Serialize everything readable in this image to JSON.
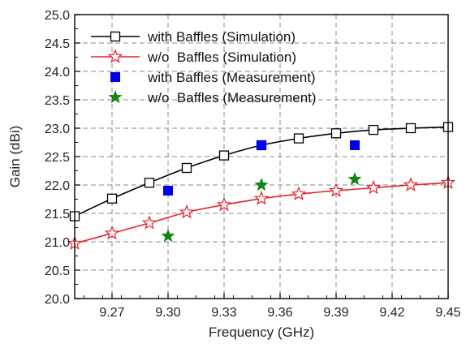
{
  "chart_data": {
    "type": "line",
    "title": "",
    "xlabel": "Frequency (GHz)",
    "ylabel": "Gain (dBi)",
    "xlim": [
      9.25,
      9.45
    ],
    "ylim": [
      20.0,
      25.0
    ],
    "x_ticks": [
      "9.27",
      "9.30",
      "9.33",
      "9.36",
      "9.39",
      "9.42",
      "9.45"
    ],
    "y_ticks": [
      "20.0",
      "20.5",
      "21.0",
      "21.5",
      "22.0",
      "22.5",
      "23.0",
      "23.5",
      "24.0",
      "24.5",
      "25.0"
    ],
    "grid": true,
    "legend_position": "top-left",
    "series": [
      {
        "name": "with Baffles (Simulation)",
        "style": "line+open-square",
        "color": "#000000",
        "x": [
          9.25,
          9.27,
          9.29,
          9.31,
          9.33,
          9.35,
          9.37,
          9.39,
          9.41,
          9.43,
          9.45
        ],
        "y": [
          21.45,
          21.76,
          22.04,
          22.3,
          22.52,
          22.7,
          22.82,
          22.91,
          22.97,
          23.0,
          23.02
        ]
      },
      {
        "name": "w/o  Baffles (Simulation)",
        "style": "line+open-star",
        "color": "#e8202a",
        "x": [
          9.25,
          9.27,
          9.29,
          9.31,
          9.33,
          9.35,
          9.37,
          9.39,
          9.41,
          9.43,
          9.45
        ],
        "y": [
          20.97,
          21.15,
          21.33,
          21.52,
          21.65,
          21.76,
          21.84,
          21.9,
          21.95,
          22.0,
          22.04
        ]
      },
      {
        "name": "with Baffles (Measurement)",
        "style": "filled-square",
        "color": "#0000ee",
        "x": [
          9.3,
          9.35,
          9.4
        ],
        "y": [
          21.9,
          22.7,
          22.7
        ]
      },
      {
        "name": "w/o  Baffles (Measurement)",
        "style": "filled-star",
        "color": "#118811",
        "x": [
          9.3,
          9.35,
          9.4
        ],
        "y": [
          21.1,
          22.0,
          22.1
        ]
      }
    ]
  }
}
